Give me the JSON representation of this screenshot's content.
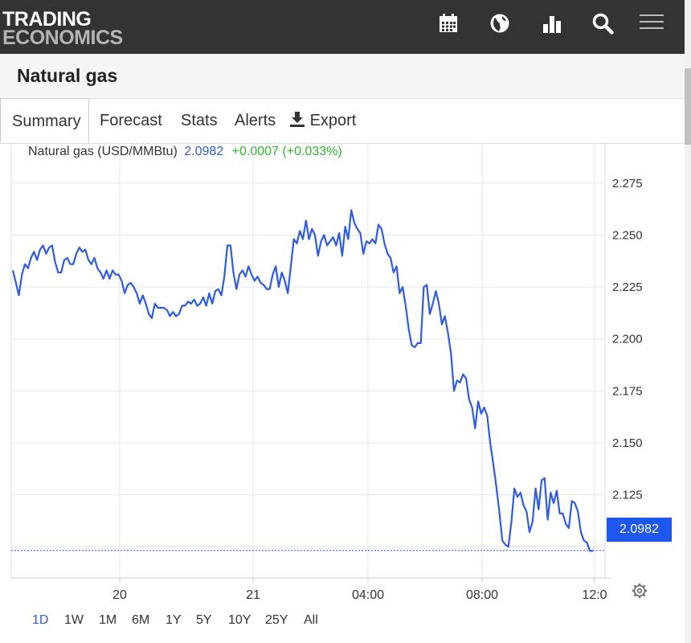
{
  "brand": {
    "line1": "TRADING",
    "line2": "ECONOMICS"
  },
  "nav_icons": [
    "calendar-icon",
    "globe-icon",
    "bar-chart-icon",
    "search-icon",
    "menu-icon"
  ],
  "page": {
    "title": "Natural gas"
  },
  "tabs": [
    "Summary",
    "Forecast",
    "Stats",
    "Alerts",
    "Export"
  ],
  "active_tab": "Summary",
  "chart_header": {
    "name": "Natural gas (USD/MMBtu)",
    "value": "2.0982",
    "change": "+0.0007 (+0.033%)"
  },
  "current_price_label": "2.0982",
  "ranges": [
    "1D",
    "1W",
    "1M",
    "6M",
    "1Y",
    "5Y",
    "10Y",
    "25Y",
    "All"
  ],
  "active_range": "1D",
  "colors": {
    "line": "#2e5be6",
    "change_positive": "#2cba2c",
    "badge": "#1e56f0",
    "topbar": "#333333"
  },
  "chart_data": {
    "type": "line",
    "title": "Natural gas (USD/MMBtu)",
    "xlabel": "",
    "ylabel": "",
    "x_ticks": [
      "20",
      "21",
      "04:00",
      "08:00",
      "12:0"
    ],
    "y_ticks": [
      "2.275",
      "2.250",
      "2.225",
      "2.200",
      "2.175",
      "2.150",
      "2.125"
    ],
    "ylim": [
      2.085,
      2.285
    ],
    "grid": true,
    "current_value": 2.0982,
    "series": [
      {
        "name": "Natural gas",
        "values": [
          2.233,
          2.227,
          2.221,
          2.231,
          2.236,
          2.234,
          2.239,
          2.242,
          2.238,
          2.243,
          2.245,
          2.241,
          2.244,
          2.245,
          2.237,
          2.232,
          2.232,
          2.238,
          2.239,
          2.236,
          2.236,
          2.241,
          2.244,
          2.242,
          2.243,
          2.238,
          2.236,
          2.239,
          2.234,
          2.232,
          2.229,
          2.233,
          2.229,
          2.233,
          2.231,
          2.231,
          2.228,
          2.222,
          2.226,
          2.227,
          2.225,
          2.222,
          2.217,
          2.221,
          2.217,
          2.212,
          2.21,
          2.217,
          2.215,
          2.215,
          2.215,
          2.214,
          2.211,
          2.213,
          2.211,
          2.212,
          2.216,
          2.216,
          2.218,
          2.217,
          2.219,
          2.216,
          2.217,
          2.22,
          2.216,
          2.222,
          2.217,
          2.223,
          2.224,
          2.221,
          2.23,
          2.245,
          2.245,
          2.232,
          2.224,
          2.231,
          2.233,
          2.23,
          2.235,
          2.231,
          2.228,
          2.23,
          2.227,
          2.226,
          2.224,
          2.224,
          2.231,
          2.235,
          2.225,
          2.232,
          2.228,
          2.222,
          2.235,
          2.248,
          2.246,
          2.252,
          2.248,
          2.257,
          2.248,
          2.253,
          2.25,
          2.24,
          2.247,
          2.25,
          2.245,
          2.247,
          2.249,
          2.245,
          2.251,
          2.24,
          2.254,
          2.248,
          2.262,
          2.256,
          2.253,
          2.251,
          2.241,
          2.247,
          2.246,
          2.248,
          2.246,
          2.255,
          2.253,
          2.246,
          2.241,
          2.239,
          2.232,
          2.235,
          2.222,
          2.225,
          2.216,
          2.205,
          2.197,
          2.196,
          2.198,
          2.198,
          2.225,
          2.226,
          2.212,
          2.217,
          2.223,
          2.217,
          2.207,
          2.211,
          2.203,
          2.193,
          2.175,
          2.18,
          2.179,
          2.183,
          2.181,
          2.171,
          2.167,
          2.157,
          2.17,
          2.164,
          2.167,
          2.163,
          2.15,
          2.14,
          2.129,
          2.117,
          2.103,
          2.101,
          2.1,
          2.112,
          2.128,
          2.124,
          2.126,
          2.12,
          2.117,
          2.107,
          2.112,
          2.128,
          2.118,
          2.132,
          2.133,
          2.113,
          2.126,
          2.121,
          2.127,
          2.116,
          2.116,
          2.111,
          2.109,
          2.122,
          2.121,
          2.117,
          2.107,
          2.103,
          2.102,
          2.098,
          2.098
        ]
      }
    ]
  }
}
